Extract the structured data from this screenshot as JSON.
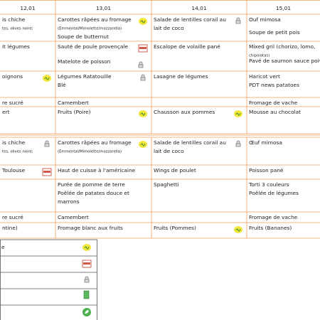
{
  "header": {
    "dates": [
      "12,01",
      "13,01",
      "14,01",
      "15,01"
    ]
  },
  "table": {
    "rows": [
      [
        [
          "is chiche",
          "tes, olives noire;"
        ],
        [
          "Carottes râpées au fromage",
          "(Emmental/Mimolette/mozzarella)",
          "Soupe de butternut"
        ],
        [
          "Salade de lentilles corail au",
          "lait de coco"
        ],
        [
          "Ouf mimosa",
          "Soupe de petit pois"
        ]
      ],
      [
        [
          "it légumes"
        ],
        [
          "Sauté de poule provençale",
          "Matelote de poisson"
        ],
        [
          "Escalope de volaille pané"
        ],
        [
          "Mixed gril (chorizo, lomo,",
          "chipolatas)",
          "Pavé de saumon sauce poivro"
        ]
      ],
      [
        [
          "oignons"
        ],
        [
          "Légumes Ratatouille",
          "Blé"
        ],
        [
          "Lasagne de légumes"
        ],
        [
          "Haricot vert",
          "PDT news patatoes"
        ]
      ],
      [
        [
          "re sucré"
        ],
        [
          "Camembert"
        ],
        [],
        [
          "Fromage de vache"
        ]
      ],
      [
        [
          "ert"
        ],
        [
          "Fruits (Poire)"
        ],
        [
          "Chausson aux pommes"
        ],
        [
          "Mousse au chocolat"
        ]
      ],
      [
        [
          "is chiche",
          "tes, olives noire;"
        ],
        [
          "Carottes râpées au fromage",
          "(Emmental/Mimolette/mozzarella)"
        ],
        [
          "Salade de lentilles corail au",
          "lait de coco"
        ],
        [
          "Œuf mimosa"
        ]
      ],
      [
        [
          "Toulouse"
        ],
        [
          "Haut de cuisse à l'américaine"
        ],
        [
          "Wings de poulet"
        ],
        [
          "Poisson pané"
        ]
      ],
      [
        [],
        [
          "Purée de pomme de terre",
          "Poêlée de patates douce et",
          "marrons"
        ],
        [
          "Spaghetti"
        ],
        [
          "Torti 3 couleurs",
          "Poêlée de légumes"
        ]
      ],
      [
        [
          "re sucré"
        ],
        [
          "Camembert"
        ],
        [],
        [
          "Fromage de vache"
        ]
      ],
      [
        [
          "ntine)"
        ],
        [
          "Fromage blanc aux fruits"
        ],
        [
          "Fruits (Pommes)"
        ],
        [
          "Fruits (Bananes)"
        ]
      ]
    ]
  },
  "legend": {
    "items": [
      "e"
    ]
  }
}
